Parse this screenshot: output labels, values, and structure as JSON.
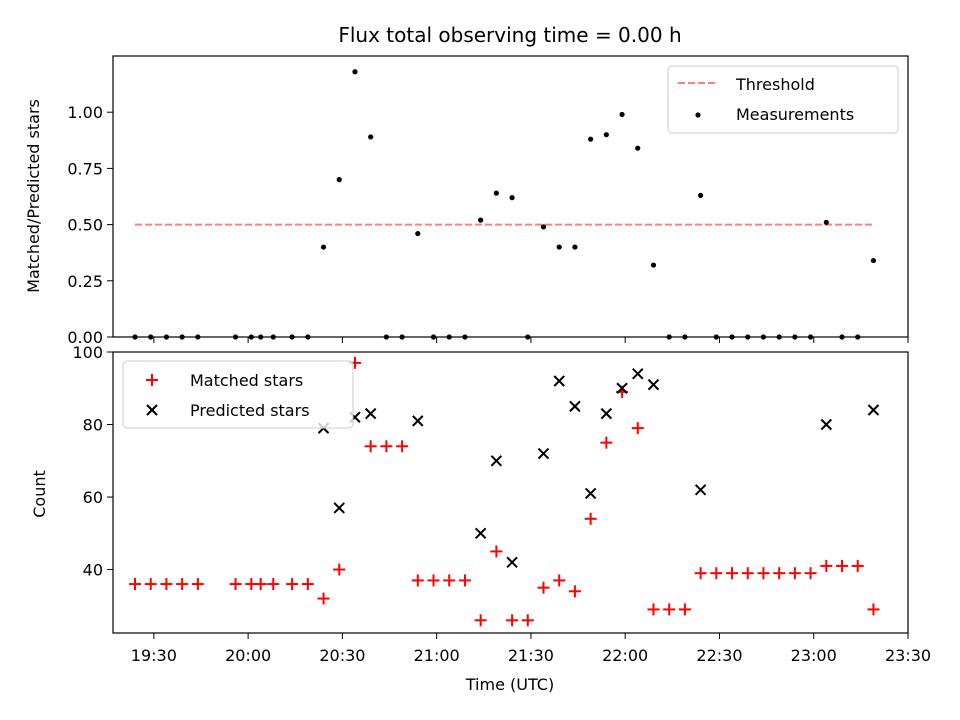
{
  "title": "Flux total observing time = 0.00 h",
  "chart_data": [
    {
      "type": "scatter",
      "ylabel": "Matched/Predicted stars",
      "ylim": [
        0,
        1.25
      ],
      "yticks": [
        0.0,
        0.25,
        0.5,
        0.75,
        1.0
      ],
      "ytick_labels": [
        "0.00",
        "0.25",
        "0.50",
        "0.75",
        "1.00"
      ],
      "xlim": [
        "19:17",
        "23:30"
      ],
      "legend_position": "top-right",
      "threshold": {
        "name": "Threshold",
        "value": 0.5,
        "x_start": "19:24",
        "x_end": "23:19",
        "color": "#ff7f7f",
        "style": "dashed"
      },
      "series": [
        {
          "name": "Measurements",
          "color": "#000000",
          "marker": "dot",
          "points": [
            [
              "19:24",
              0
            ],
            [
              "19:29",
              0
            ],
            [
              "19:34",
              0
            ],
            [
              "19:39",
              0
            ],
            [
              "19:44",
              0
            ],
            [
              "19:56",
              0
            ],
            [
              "20:01",
              0
            ],
            [
              "20:04",
              0
            ],
            [
              "20:08",
              0
            ],
            [
              "20:14",
              0
            ],
            [
              "20:19",
              0
            ],
            [
              "20:24",
              0.4
            ],
            [
              "20:29",
              0.7
            ],
            [
              "20:34",
              1.18
            ],
            [
              "20:39",
              0.89
            ],
            [
              "20:44",
              0
            ],
            [
              "20:49",
              0
            ],
            [
              "20:54",
              0.46
            ],
            [
              "20:59",
              0
            ],
            [
              "21:04",
              0
            ],
            [
              "21:09",
              0
            ],
            [
              "21:14",
              0.52
            ],
            [
              "21:19",
              0.64
            ],
            [
              "21:24",
              0.62
            ],
            [
              "21:29",
              0
            ],
            [
              "21:34",
              0.49
            ],
            [
              "21:39",
              0.4
            ],
            [
              "21:44",
              0.4
            ],
            [
              "21:49",
              0.88
            ],
            [
              "21:54",
              0.9
            ],
            [
              "21:59",
              0.99
            ],
            [
              "22:04",
              0.84
            ],
            [
              "22:09",
              0.32
            ],
            [
              "22:14",
              0
            ],
            [
              "22:19",
              0
            ],
            [
              "22:24",
              0.63
            ],
            [
              "22:29",
              0
            ],
            [
              "22:34",
              0
            ],
            [
              "22:39",
              0
            ],
            [
              "22:44",
              0
            ],
            [
              "22:49",
              0
            ],
            [
              "22:54",
              0
            ],
            [
              "22:59",
              0
            ],
            [
              "23:04",
              0.51
            ],
            [
              "23:09",
              0
            ],
            [
              "23:14",
              0
            ],
            [
              "23:19",
              0.34
            ]
          ]
        }
      ]
    },
    {
      "type": "scatter",
      "xlabel": "Time (UTC)",
      "ylabel": "Count",
      "ylim": [
        22.5,
        100
      ],
      "yticks": [
        40,
        60,
        80,
        100
      ],
      "ytick_labels": [
        "40",
        "60",
        "80",
        "100"
      ],
      "xlim": [
        "19:17",
        "23:30"
      ],
      "xticks": [
        "19:30",
        "20:00",
        "20:30",
        "21:00",
        "21:30",
        "22:00",
        "22:30",
        "23:00",
        "23:30"
      ],
      "xtick_labels": [
        "19:30",
        "20:00",
        "20:30",
        "21:00",
        "21:30",
        "22:00",
        "22:30",
        "23:00",
        "23:30"
      ],
      "legend_position": "top-left",
      "series": [
        {
          "name": "Matched stars",
          "color": "#ff0000",
          "marker": "plus",
          "points": [
            [
              "19:24",
              36
            ],
            [
              "19:29",
              36
            ],
            [
              "19:34",
              36
            ],
            [
              "19:39",
              36
            ],
            [
              "19:44",
              36
            ],
            [
              "19:56",
              36
            ],
            [
              "20:01",
              36
            ],
            [
              "20:04",
              36
            ],
            [
              "20:08",
              36
            ],
            [
              "20:14",
              36
            ],
            [
              "20:19",
              36
            ],
            [
              "20:24",
              32
            ],
            [
              "20:29",
              40
            ],
            [
              "20:34",
              97
            ],
            [
              "20:39",
              74
            ],
            [
              "20:44",
              74
            ],
            [
              "20:49",
              74
            ],
            [
              "20:54",
              37
            ],
            [
              "20:59",
              37
            ],
            [
              "21:04",
              37
            ],
            [
              "21:09",
              37
            ],
            [
              "21:14",
              26
            ],
            [
              "21:19",
              45
            ],
            [
              "21:24",
              26
            ],
            [
              "21:29",
              26
            ],
            [
              "21:34",
              35
            ],
            [
              "21:39",
              37
            ],
            [
              "21:44",
              34
            ],
            [
              "21:49",
              54
            ],
            [
              "21:54",
              75
            ],
            [
              "21:59",
              89
            ],
            [
              "22:04",
              79
            ],
            [
              "22:09",
              29
            ],
            [
              "22:14",
              29
            ],
            [
              "22:19",
              29
            ],
            [
              "22:24",
              39
            ],
            [
              "22:29",
              39
            ],
            [
              "22:34",
              39
            ],
            [
              "22:39",
              39
            ],
            [
              "22:44",
              39
            ],
            [
              "22:49",
              39
            ],
            [
              "22:54",
              39
            ],
            [
              "22:59",
              39
            ],
            [
              "23:04",
              41
            ],
            [
              "23:09",
              41
            ],
            [
              "23:14",
              41
            ],
            [
              "23:19",
              29
            ]
          ]
        },
        {
          "name": "Predicted stars",
          "color": "#000000",
          "marker": "x",
          "points": [
            [
              "20:24",
              79
            ],
            [
              "20:29",
              57
            ],
            [
              "20:34",
              82
            ],
            [
              "20:39",
              83
            ],
            [
              "20:54",
              81
            ],
            [
              "21:14",
              50
            ],
            [
              "21:19",
              70
            ],
            [
              "21:24",
              42
            ],
            [
              "21:34",
              72
            ],
            [
              "21:39",
              92
            ],
            [
              "21:44",
              85
            ],
            [
              "21:49",
              61
            ],
            [
              "21:54",
              83
            ],
            [
              "21:59",
              90
            ],
            [
              "22:04",
              94
            ],
            [
              "22:09",
              91
            ],
            [
              "22:24",
              62
            ],
            [
              "23:04",
              80
            ],
            [
              "23:19",
              84
            ]
          ]
        }
      ]
    }
  ]
}
